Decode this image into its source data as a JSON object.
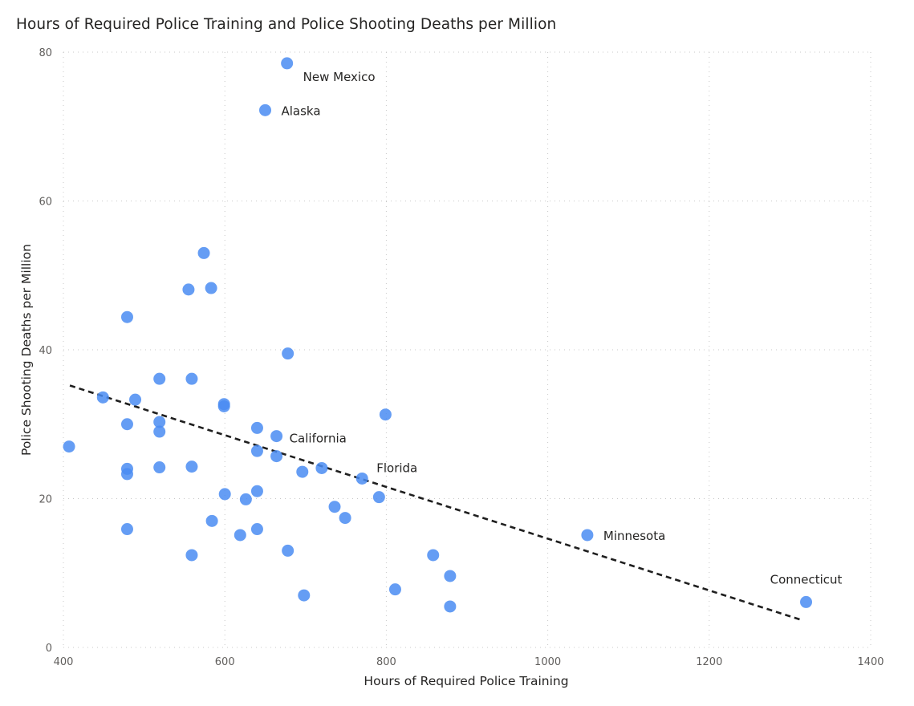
{
  "chart_data": {
    "type": "scatter",
    "title": "Hours of Required Police Training and Police Shooting Deaths per Million",
    "xlabel": "Hours of Required Police Training",
    "ylabel": "Police Shooting Deaths per Million",
    "xlim": [
      400,
      1400
    ],
    "ylim": [
      0,
      80
    ],
    "x_ticks": [
      400,
      600,
      800,
      1000,
      1200,
      1400
    ],
    "y_ticks": [
      0,
      20,
      40,
      60,
      80
    ],
    "grid": true,
    "legend": "none",
    "point_color": "#4a8cf2",
    "trendline": {
      "style": "dashed",
      "color": "#1f1f1f",
      "start": {
        "x": 408,
        "y": 35.2
      },
      "end": {
        "x": 1314,
        "y": 3.7
      }
    },
    "points": [
      {
        "x": 677,
        "y": 78.5,
        "label": "New Mexico"
      },
      {
        "x": 650,
        "y": 72.2,
        "label": "Alaska"
      },
      {
        "x": 574,
        "y": 53.0
      },
      {
        "x": 555,
        "y": 48.1
      },
      {
        "x": 583,
        "y": 48.3
      },
      {
        "x": 479,
        "y": 44.4
      },
      {
        "x": 678,
        "y": 39.5
      },
      {
        "x": 519,
        "y": 36.1
      },
      {
        "x": 559,
        "y": 36.1
      },
      {
        "x": 449,
        "y": 33.6
      },
      {
        "x": 489,
        "y": 33.3
      },
      {
        "x": 599,
        "y": 32.7
      },
      {
        "x": 599,
        "y": 32.4
      },
      {
        "x": 799,
        "y": 31.3
      },
      {
        "x": 479,
        "y": 30.0
      },
      {
        "x": 519,
        "y": 30.3
      },
      {
        "x": 519,
        "y": 29.0
      },
      {
        "x": 640,
        "y": 29.5
      },
      {
        "x": 664,
        "y": 28.4,
        "label": "California"
      },
      {
        "x": 407,
        "y": 27.0
      },
      {
        "x": 640,
        "y": 26.4
      },
      {
        "x": 664,
        "y": 25.7
      },
      {
        "x": 479,
        "y": 24.0
      },
      {
        "x": 479,
        "y": 23.3
      },
      {
        "x": 519,
        "y": 24.2
      },
      {
        "x": 559,
        "y": 24.3
      },
      {
        "x": 720,
        "y": 24.1
      },
      {
        "x": 696,
        "y": 23.6
      },
      {
        "x": 770,
        "y": 22.7,
        "label": "Florida"
      },
      {
        "x": 600,
        "y": 20.6
      },
      {
        "x": 640,
        "y": 21.0
      },
      {
        "x": 626,
        "y": 19.9
      },
      {
        "x": 791,
        "y": 20.2
      },
      {
        "x": 736,
        "y": 18.9
      },
      {
        "x": 749,
        "y": 17.4
      },
      {
        "x": 584,
        "y": 17.0
      },
      {
        "x": 479,
        "y": 15.9
      },
      {
        "x": 640,
        "y": 15.9
      },
      {
        "x": 619,
        "y": 15.1
      },
      {
        "x": 678,
        "y": 13.0
      },
      {
        "x": 559,
        "y": 12.4
      },
      {
        "x": 858,
        "y": 12.4
      },
      {
        "x": 879,
        "y": 9.6
      },
      {
        "x": 811,
        "y": 7.8
      },
      {
        "x": 698,
        "y": 7.0
      },
      {
        "x": 879,
        "y": 5.5
      },
      {
        "x": 1049,
        "y": 15.1,
        "label": "Minnesota"
      },
      {
        "x": 1320,
        "y": 6.1,
        "label": "Connecticut"
      }
    ]
  }
}
